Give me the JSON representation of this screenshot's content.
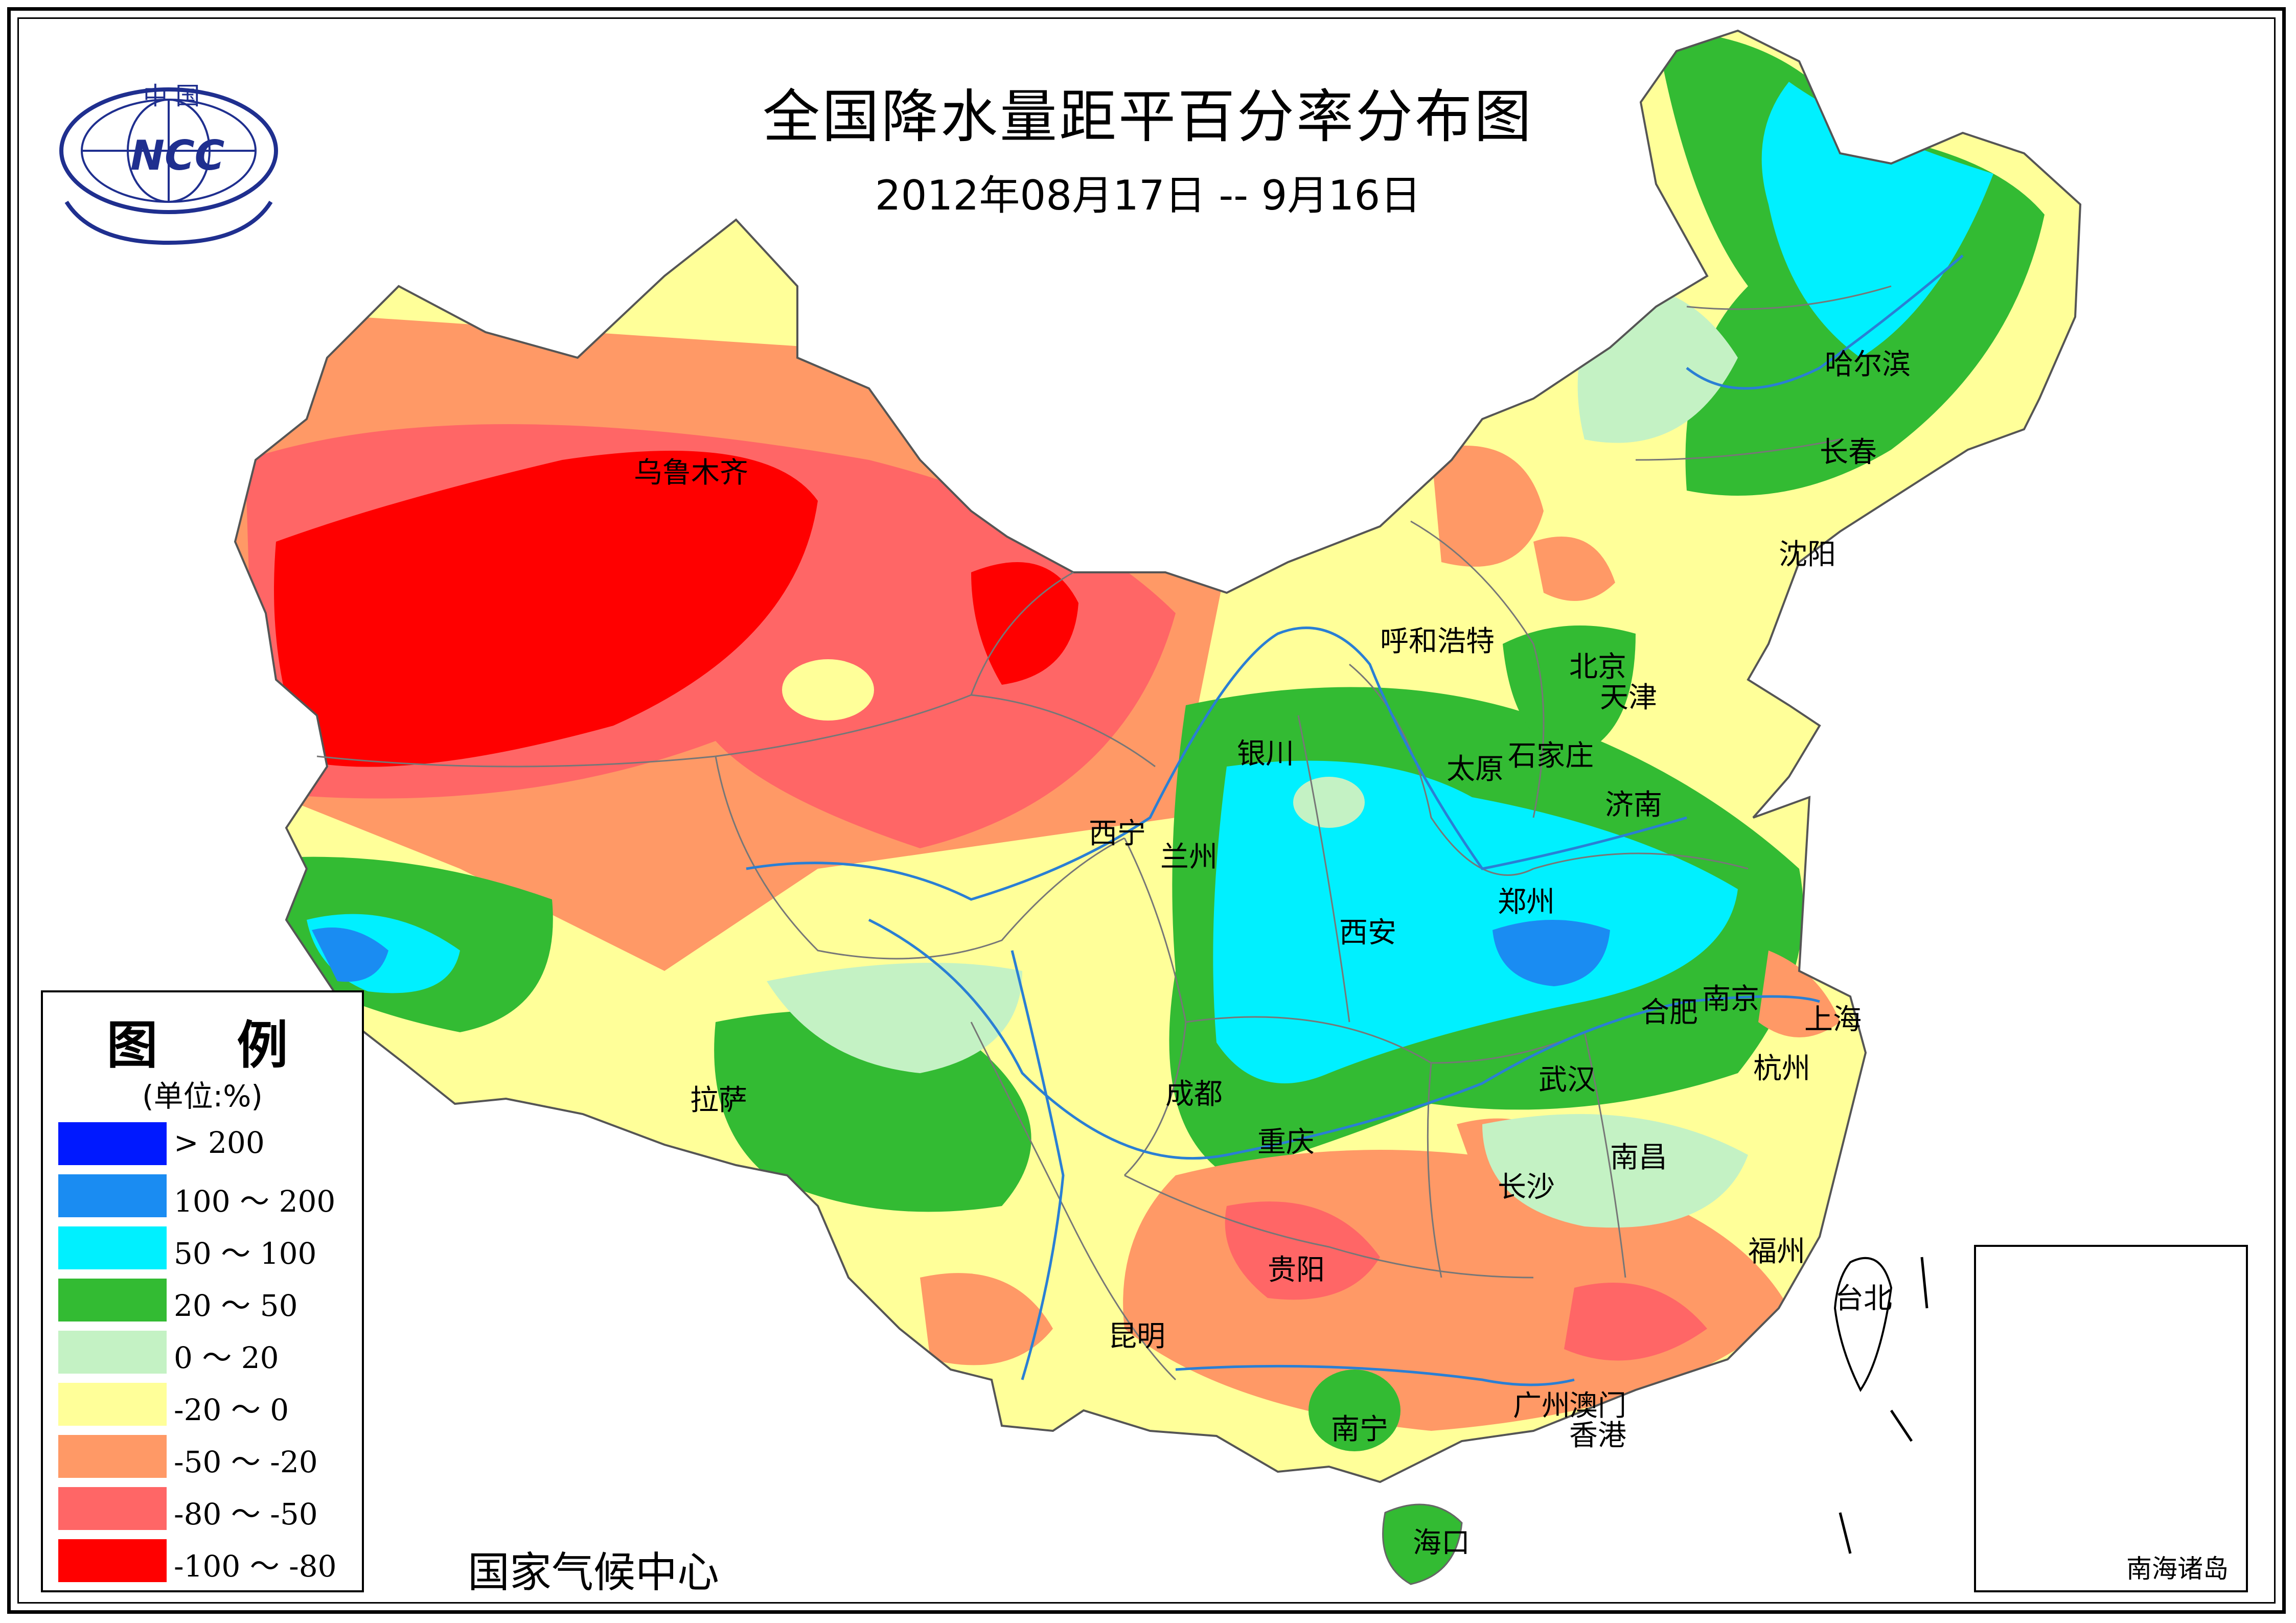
{
  "title": "全国降水量距平百分率分布图",
  "subtitle": "2012年08月17日 -- 9月16日",
  "logo": {
    "top_text": "中 国",
    "center_text": "NCC",
    "color": "#1f2f8f"
  },
  "agency": "国家气候中心",
  "legend": {
    "title": "图 例",
    "unit": "(单位:%)",
    "items": [
      {
        "label": "> 200",
        "color": "#0019ff"
      },
      {
        "label": "100 ～ 200",
        "color": "#1a8cf2"
      },
      {
        "label": "50 ～ 100",
        "color": "#00f0ff"
      },
      {
        "label": "20 ～ 50",
        "color": "#33bb33"
      },
      {
        "label": "0 ～ 20",
        "color": "#c4f2c4"
      },
      {
        "label": "-20 ～ 0",
        "color": "#ffff99"
      },
      {
        "label": "-50 ～ -20",
        "color": "#ff9966"
      },
      {
        "label": "-80 ～ -50",
        "color": "#ff6666"
      },
      {
        "label": "-100 ～ -80",
        "color": "#ff0000"
      }
    ]
  },
  "inset": {
    "label": "南海诸岛"
  },
  "cities": [
    {
      "id": "urumqi",
      "name": "乌鲁木齐"
    },
    {
      "id": "harbin",
      "name": "哈尔滨"
    },
    {
      "id": "changchun",
      "name": "长春"
    },
    {
      "id": "shenyang",
      "name": "沈阳"
    },
    {
      "id": "hohhot",
      "name": "呼和浩特"
    },
    {
      "id": "beijing",
      "name": "北京"
    },
    {
      "id": "tianjin",
      "name": "天津"
    },
    {
      "id": "yinchuan",
      "name": "银川"
    },
    {
      "id": "taiyuan",
      "name": "太原"
    },
    {
      "id": "shijiazhuang",
      "name": "石家庄"
    },
    {
      "id": "jinan",
      "name": "济南"
    },
    {
      "id": "xining",
      "name": "西宁"
    },
    {
      "id": "lanzhou",
      "name": "兰州"
    },
    {
      "id": "zhengzhou",
      "name": "郑州"
    },
    {
      "id": "xian",
      "name": "西安"
    },
    {
      "id": "hefei",
      "name": "合肥"
    },
    {
      "id": "nanjing",
      "name": "南京"
    },
    {
      "id": "shanghai",
      "name": "上海"
    },
    {
      "id": "lhasa",
      "name": "拉萨"
    },
    {
      "id": "chengdu",
      "name": "成都"
    },
    {
      "id": "wuhan",
      "name": "武汉"
    },
    {
      "id": "hangzhou",
      "name": "杭州"
    },
    {
      "id": "chongqing",
      "name": "重庆"
    },
    {
      "id": "nanchang",
      "name": "南昌"
    },
    {
      "id": "changsha",
      "name": "长沙"
    },
    {
      "id": "guiyang",
      "name": "贵阳"
    },
    {
      "id": "fuzhou",
      "name": "福州"
    },
    {
      "id": "taibei",
      "name": "台北"
    },
    {
      "id": "kunming",
      "name": "昆明"
    },
    {
      "id": "guangzhou",
      "name": "广州"
    },
    {
      "id": "macao",
      "name": "澳门"
    },
    {
      "id": "hongkong",
      "name": "香港"
    },
    {
      "id": "nanning",
      "name": "南宁"
    },
    {
      "id": "haikou",
      "name": "海口"
    }
  ]
}
